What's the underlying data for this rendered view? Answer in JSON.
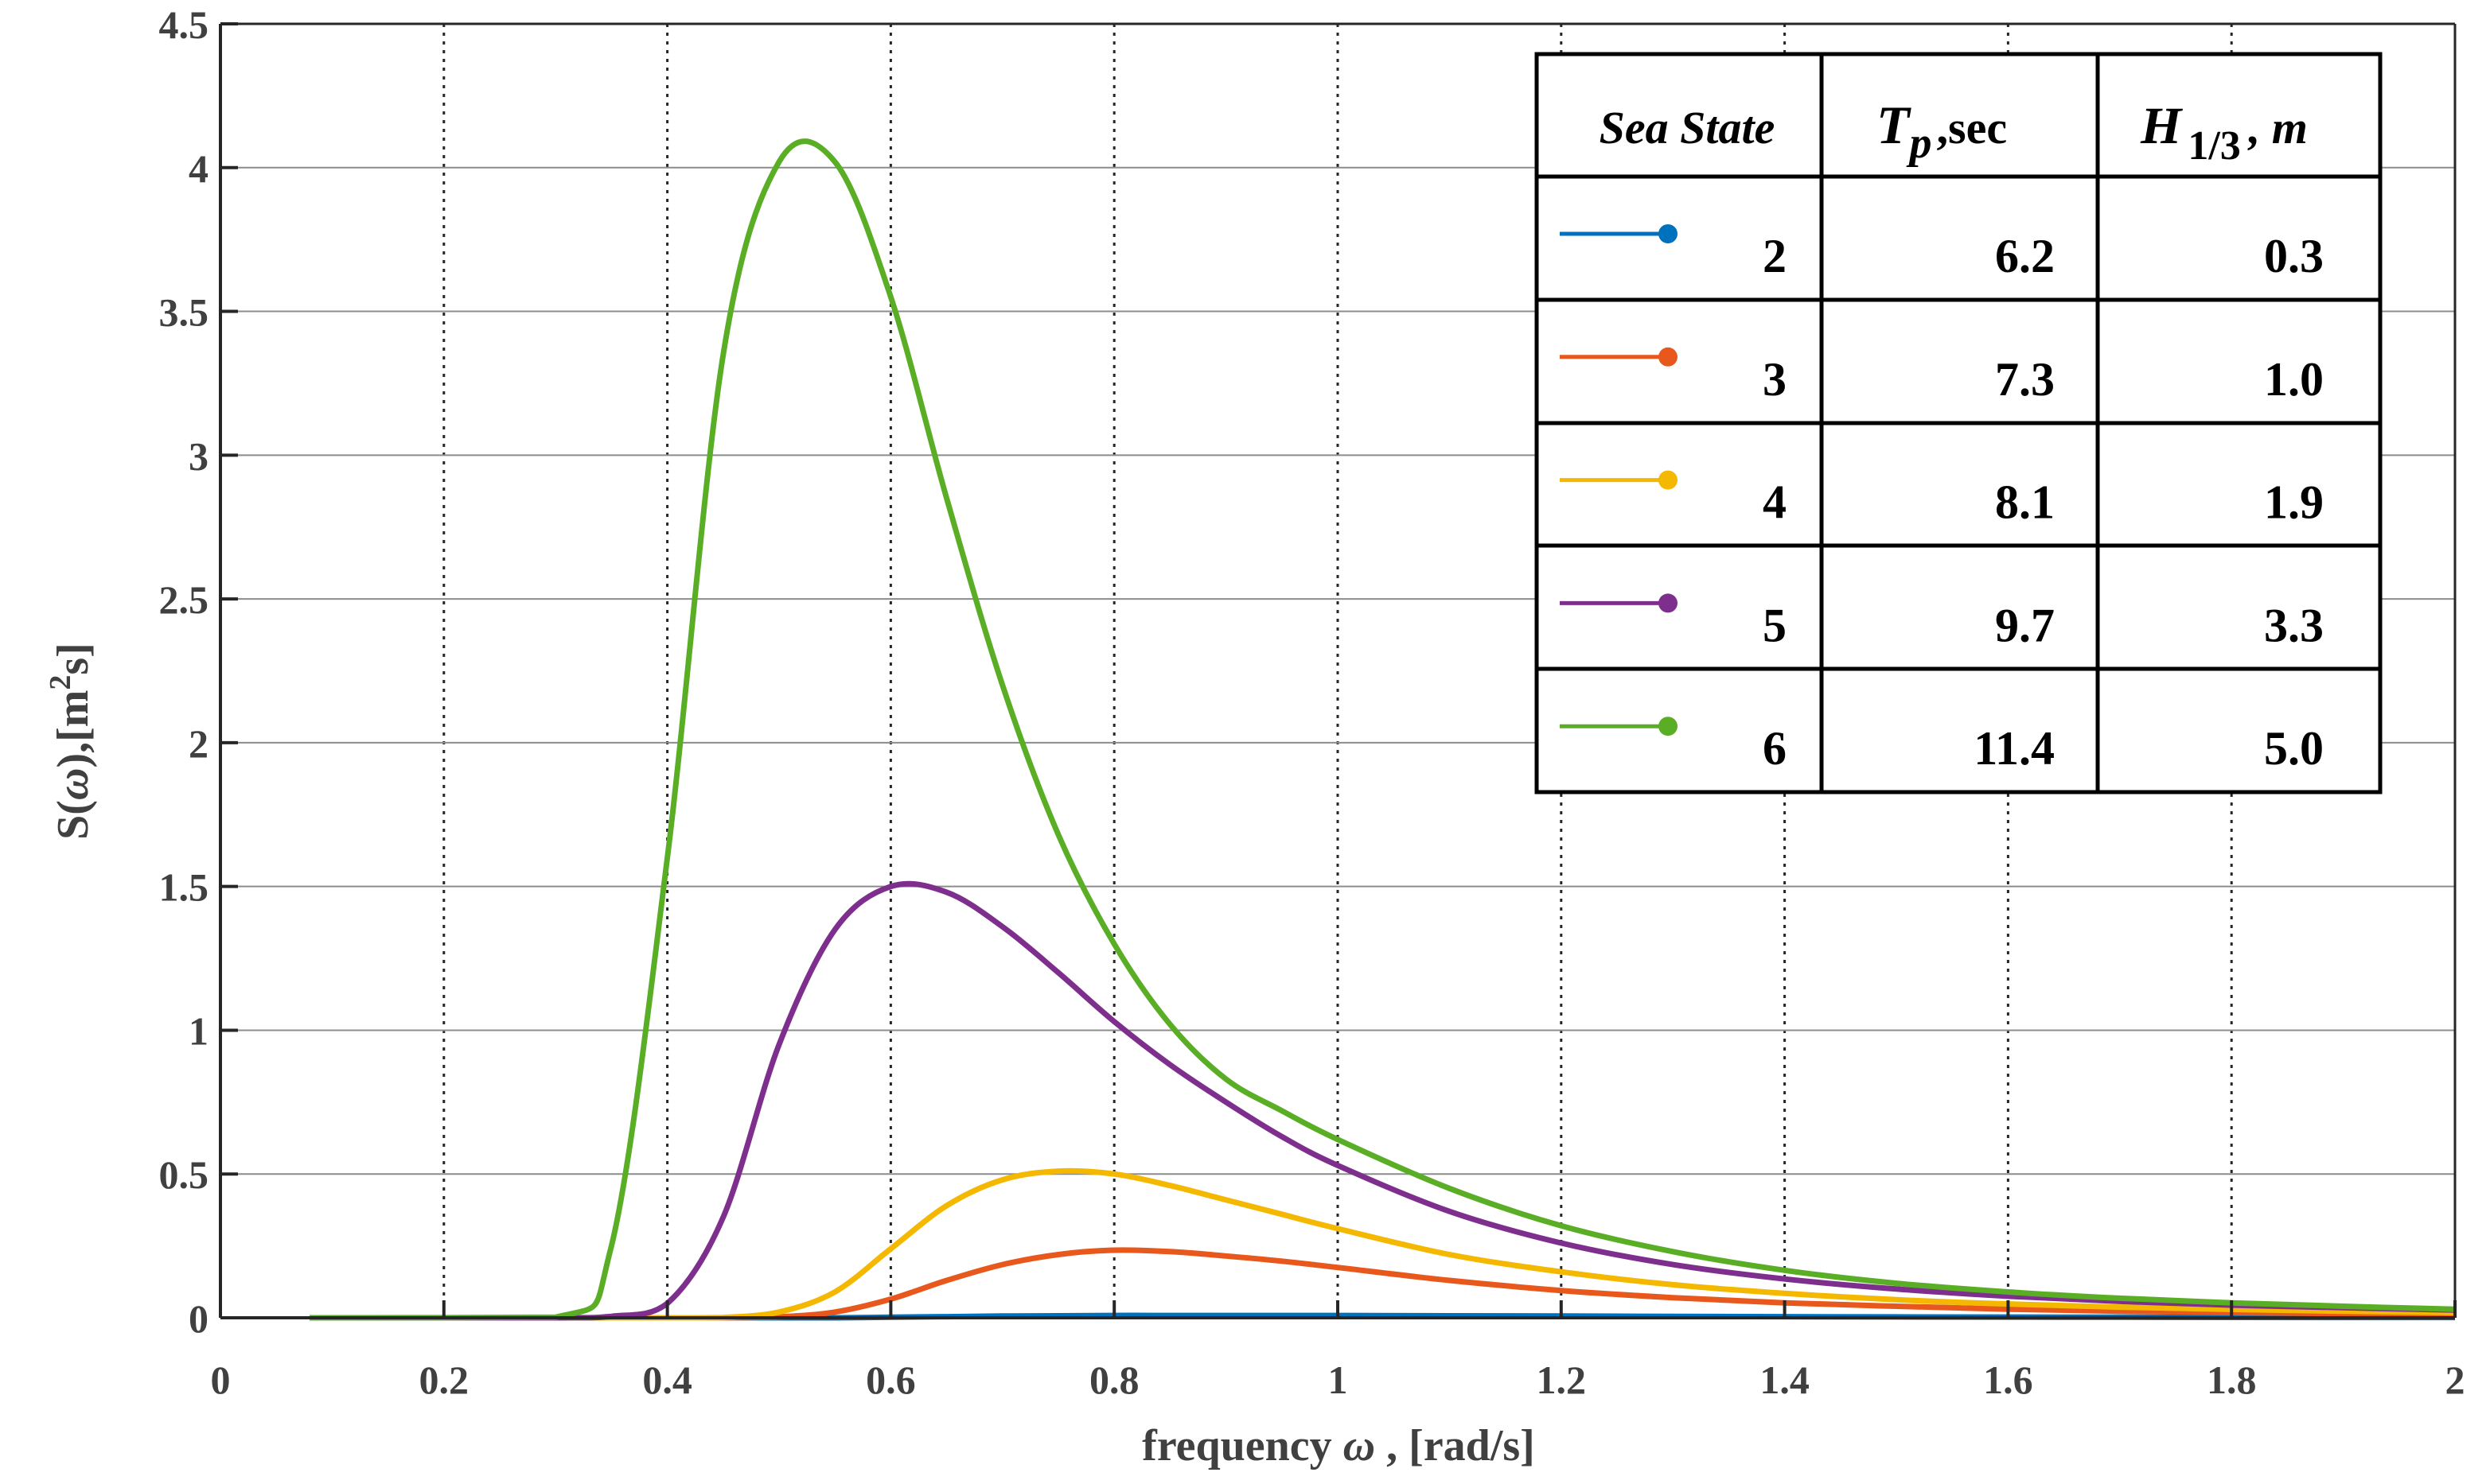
{
  "chart_data": {
    "type": "line",
    "title": "",
    "xlabel": "frequency ω , [rad/s]",
    "xlabel_parts": {
      "text": "frequency",
      "symbol": "ω",
      "unit": ", [rad/s]"
    },
    "ylabel": "S(ω),[m²s]",
    "ylabel_parts": {
      "prefix": "S(",
      "symbol": "ω",
      "mid": "),[m",
      "sup": "2",
      "suffix": "s]"
    },
    "xlim": [
      0,
      2
    ],
    "ylim": [
      0,
      4.5
    ],
    "xticks": [
      0,
      0.2,
      0.4,
      0.6,
      0.8,
      1,
      1.2,
      1.4,
      1.6,
      1.8,
      2
    ],
    "xtick_labels": [
      "0",
      "0.2",
      "0.4",
      "0.6",
      "0.8",
      "1",
      "1.2",
      "1.4",
      "1.6",
      "1.8",
      "2"
    ],
    "yticks": [
      0,
      0.5,
      1,
      1.5,
      2,
      2.5,
      3,
      3.5,
      4,
      4.5
    ],
    "ytick_labels": [
      "0",
      "0.5",
      "1",
      "1.5",
      "2",
      "2.5",
      "3",
      "3.5",
      "4",
      "4.5"
    ],
    "grid": true,
    "legend_location": "top-right",
    "x": [
      0.08,
      0.3,
      0.35,
      0.4,
      0.45,
      0.5,
      0.55,
      0.6,
      0.65,
      0.7,
      0.75,
      0.8,
      0.85,
      0.9,
      0.95,
      1.0,
      1.1,
      1.2,
      1.3,
      1.4,
      1.5,
      1.6,
      1.7,
      1.8,
      1.9,
      2.0
    ],
    "series": [
      {
        "name": "Sea State 2",
        "sea_state": "2",
        "tp": "6.2",
        "h13": "0.3",
        "color": "#0072BD",
        "values": [
          0,
          0,
          0,
          0,
          0,
          0,
          0,
          0.002,
          0.004,
          0.006,
          0.007,
          0.008,
          0.008,
          0.008,
          0.008,
          0.008,
          0.007,
          0.006,
          0.005,
          0.004,
          0.003,
          0.0025,
          0.002,
          0.0015,
          0.0012,
          0.001
        ]
      },
      {
        "name": "Sea State 3",
        "sea_state": "3",
        "tp": "7.3",
        "h13": "1.0",
        "color": "#E8581C",
        "values": [
          0,
          0,
          0,
          0,
          0,
          0.003,
          0.02,
          0.065,
          0.13,
          0.185,
          0.22,
          0.235,
          0.23,
          0.215,
          0.197,
          0.175,
          0.13,
          0.095,
          0.07,
          0.052,
          0.04,
          0.03,
          0.023,
          0.018,
          0.014,
          0.011
        ]
      },
      {
        "name": "Sea State 4",
        "sea_state": "4",
        "tp": "8.1",
        "h13": "1.9",
        "color": "#F5B800",
        "values": [
          0,
          0,
          0,
          0,
          0.001,
          0.02,
          0.09,
          0.24,
          0.39,
          0.48,
          0.51,
          0.5,
          0.46,
          0.41,
          0.36,
          0.31,
          0.22,
          0.16,
          0.115,
          0.085,
          0.063,
          0.048,
          0.037,
          0.029,
          0.023,
          0.018
        ]
      },
      {
        "name": "Sea State 5",
        "sea_state": "5",
        "tp": "9.7",
        "h13": "3.3",
        "color": "#7E2F8E",
        "values": [
          0,
          0,
          0.005,
          0.05,
          0.35,
          0.95,
          1.35,
          1.5,
          1.48,
          1.36,
          1.2,
          1.03,
          0.88,
          0.75,
          0.63,
          0.53,
          0.37,
          0.26,
          0.185,
          0.135,
          0.1,
          0.075,
          0.057,
          0.044,
          0.035,
          0.027
        ]
      },
      {
        "name": "Sea State 6",
        "sea_state": "6",
        "tp": "11.4",
        "h13": "5.0",
        "color": "#5AAE25",
        "values": [
          0,
          0.002,
          0.25,
          1.6,
          3.35,
          4.02,
          4.02,
          3.55,
          2.85,
          2.2,
          1.68,
          1.3,
          1.02,
          0.83,
          0.72,
          0.62,
          0.45,
          0.32,
          0.23,
          0.165,
          0.12,
          0.09,
          0.068,
          0.052,
          0.04,
          0.03
        ]
      }
    ],
    "legend": {
      "header": {
        "sea_state": "Sea  State",
        "tp_symbol": "T",
        "tp_sub": "p",
        "tp_unit": ",sec",
        "h_symbol": "H",
        "h_sub": "1/3",
        "h_unit": ", m"
      }
    }
  }
}
